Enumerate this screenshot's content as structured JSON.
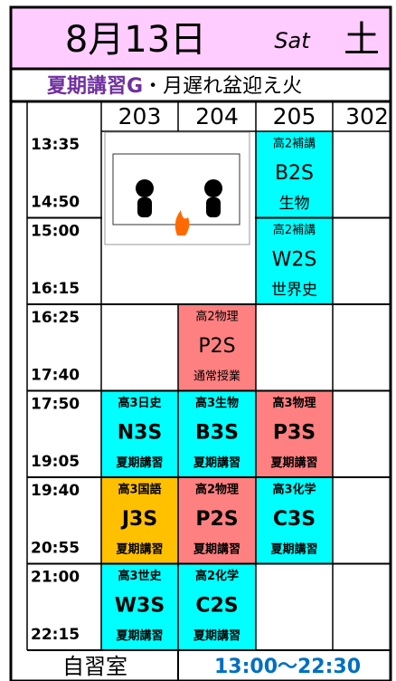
{
  "header": {
    "date": "8月13日",
    "day_en": "Sat",
    "day_jp": "土"
  },
  "subtitle": {
    "highlight": "夏期講習G",
    "rest": "・月遅れ盆迎え火"
  },
  "rooms": [
    "203",
    "204",
    "205",
    "302"
  ],
  "slots": [
    {
      "start": "13:35",
      "end": "14:50"
    },
    {
      "start": "15:00",
      "end": "16:15"
    },
    {
      "start": "16:25",
      "end": "17:40"
    },
    {
      "start": "17:50",
      "end": "19:05"
    },
    {
      "start": "19:40",
      "end": "20:55"
    },
    {
      "start": "21:00",
      "end": "22:15"
    }
  ],
  "classes": [
    {
      "room": 2,
      "slot": 0,
      "top": "高2補講",
      "code": "B2S",
      "bottom": "生物",
      "color": "#00ffff",
      "bold": false
    },
    {
      "room": 2,
      "slot": 1,
      "top": "高2補講",
      "code": "W2S",
      "bottom": "世界史",
      "color": "#00ffff",
      "bold": false
    },
    {
      "room": 1,
      "slot": 2,
      "top": "高2物理",
      "code": "P2S",
      "bottom": "通常授業",
      "color": "#ff8080",
      "bold": false
    },
    {
      "room": 0,
      "slot": 3,
      "top": "高3日史",
      "code": "N3S",
      "bottom": "夏期講習",
      "color": "#00ffff",
      "bold": true
    },
    {
      "room": 1,
      "slot": 3,
      "top": "高3生物",
      "code": "B3S",
      "bottom": "夏期講習",
      "color": "#00ffff",
      "bold": true
    },
    {
      "room": 2,
      "slot": 3,
      "top": "高3物理",
      "code": "P3S",
      "bottom": "夏期講習",
      "color": "#ff8080",
      "bold": true
    },
    {
      "room": 0,
      "slot": 4,
      "top": "高3国語",
      "code": "J3S",
      "bottom": "夏期講習",
      "color": "#ffc000",
      "bold": true
    },
    {
      "room": 1,
      "slot": 4,
      "top": "高2物理",
      "code": "P2S",
      "bottom": "夏期講習",
      "color": "#ff8080",
      "bold": true
    },
    {
      "room": 2,
      "slot": 4,
      "top": "高3化学",
      "code": "C3S",
      "bottom": "夏期講習",
      "color": "#00ffff",
      "bold": true
    },
    {
      "room": 0,
      "slot": 5,
      "top": "高3世史",
      "code": "W3S",
      "bottom": "夏期講習",
      "color": "#00ffff",
      "bold": true
    },
    {
      "room": 1,
      "slot": 5,
      "top": "高2化学",
      "code": "C2S",
      "bottom": "夏期講習",
      "color": "#00ffff",
      "bold": true
    }
  ],
  "footer": {
    "label": "自習室",
    "hours": "13:00〜22:30"
  }
}
